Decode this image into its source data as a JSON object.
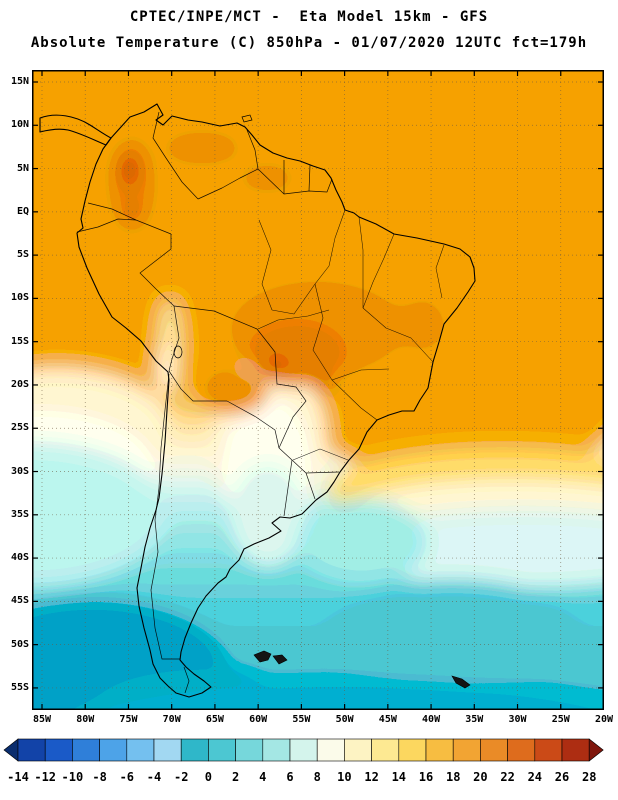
{
  "header": {
    "line1": "CPTEC/INPE/MCT -  Eta Model 15km - GFS",
    "line2": "Absolute Temperature (C) 850hPa - 01/07/2020 12UTC fct=179h"
  },
  "map": {
    "lat_labels": [
      "15N",
      "10N",
      "5N",
      "EQ",
      "5S",
      "10S",
      "15S",
      "20S",
      "25S",
      "30S",
      "35S",
      "40S",
      "45S",
      "50S",
      "55S"
    ],
    "lon_labels": [
      "85W",
      "80W",
      "75W",
      "70W",
      "65W",
      "60W",
      "55W",
      "50W",
      "45W",
      "40W",
      "35W",
      "30W",
      "25W",
      "20W"
    ]
  },
  "colorbar": {
    "unit": "C",
    "ticks": [
      "-14",
      "-12",
      "-10",
      "-8",
      "-6",
      "-4",
      "-2",
      "0",
      "2",
      "4",
      "6",
      "8",
      "10",
      "12",
      "14",
      "16",
      "18",
      "20",
      "22",
      "24",
      "26",
      "28"
    ],
    "colors": [
      "#0a2d6e",
      "#1243a8",
      "#1a5ac8",
      "#2f7fd9",
      "#4da3e8",
      "#74c0ef",
      "#a2d8f2",
      "#2fb7c9",
      "#4cc7d2",
      "#76d7db",
      "#a4e7e4",
      "#d4f4ec",
      "#fbfbea",
      "#fdf3c3",
      "#fde992",
      "#fcd75f",
      "#f7bd41",
      "#f2a433",
      "#ea8b27",
      "#de6c1d",
      "#cb4a17",
      "#ad2d12",
      "#7f160c"
    ]
  }
}
